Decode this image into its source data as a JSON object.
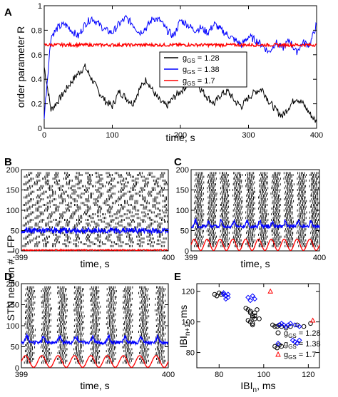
{
  "chart_data": [
    {
      "panel": "A",
      "type": "line",
      "xlabel": "time, s",
      "ylabel": "order parameter R",
      "xlim": [
        0,
        400
      ],
      "ylim": [
        0,
        1
      ],
      "xticks": [
        "0",
        "100",
        "200",
        "300",
        "400"
      ],
      "yticks": [
        "0",
        "0.2",
        "0.4",
        "0.6",
        "0.8",
        "1"
      ],
      "legend_position": "center-right",
      "series": [
        {
          "name": "g_GS = 1.28",
          "sub": "GS",
          "value_text": " = 1.28",
          "color": "#000000",
          "x": [
            0,
            10,
            20,
            30,
            40,
            50,
            60,
            70,
            80,
            90,
            100,
            110,
            120,
            130,
            140,
            150,
            160,
            170,
            180,
            190,
            200,
            210,
            220,
            230,
            240,
            250,
            260,
            270,
            280,
            290,
            300,
            310,
            320,
            330,
            340,
            350,
            360,
            370,
            380,
            390,
            400
          ],
          "y": [
            0.5,
            0.15,
            0.22,
            0.3,
            0.38,
            0.45,
            0.5,
            0.4,
            0.3,
            0.22,
            0.18,
            0.3,
            0.25,
            0.2,
            0.32,
            0.4,
            0.3,
            0.22,
            0.18,
            0.25,
            0.3,
            0.35,
            0.4,
            0.32,
            0.25,
            0.2,
            0.28,
            0.3,
            0.22,
            0.18,
            0.25,
            0.3,
            0.32,
            0.22,
            0.15,
            0.1,
            0.18,
            0.25,
            0.2,
            0.12,
            0.05
          ]
        },
        {
          "name": "g_GS = 1.38",
          "sub": "GS",
          "value_text": " = 1.38",
          "color": "#0000ff",
          "x": [
            0,
            10,
            20,
            30,
            40,
            50,
            60,
            70,
            80,
            90,
            100,
            110,
            120,
            130,
            140,
            150,
            160,
            170,
            180,
            190,
            200,
            210,
            220,
            230,
            240,
            250,
            260,
            270,
            280,
            290,
            300,
            310,
            320,
            330,
            340,
            350,
            360,
            370,
            380,
            390,
            400
          ],
          "y": [
            0.1,
            0.75,
            0.82,
            0.85,
            0.8,
            0.75,
            0.85,
            0.9,
            0.85,
            0.8,
            0.78,
            0.85,
            0.9,
            0.85,
            0.78,
            0.82,
            0.9,
            0.88,
            0.8,
            0.75,
            0.88,
            0.85,
            0.8,
            0.82,
            0.78,
            0.85,
            0.8,
            0.76,
            0.72,
            0.68,
            0.75,
            0.72,
            0.68,
            0.62,
            0.7,
            0.65,
            0.72,
            0.62,
            0.7,
            0.68,
            0.85
          ]
        },
        {
          "name": "g_GS = 1.7",
          "sub": "GS",
          "value_text": " = 1.7",
          "color": "#ff0000",
          "x": [
            0,
            400
          ],
          "y": [
            0.68,
            0.68
          ]
        }
      ]
    },
    {
      "panel": "B",
      "type": "scatter",
      "xlabel": "time, s",
      "ylabel": "STN neuron #, LFP",
      "xlim": [
        399,
        400
      ],
      "ylim": [
        0,
        200
      ],
      "xticks": [
        "399",
        "400"
      ],
      "yticks": [
        "0",
        "50",
        "100",
        "150",
        "200"
      ],
      "series": [
        {
          "name": "raster",
          "color": "#000000"
        },
        {
          "name": "LFP blue",
          "color": "#0000ff",
          "y": 50
        },
        {
          "name": "LFP red",
          "color": "#ff0000",
          "y": 2
        }
      ]
    },
    {
      "panel": "C",
      "type": "scatter",
      "xlabel": "time, s",
      "xlim": [
        399,
        400
      ],
      "ylim": [
        0,
        200
      ],
      "xticks": [
        "399",
        "400"
      ],
      "yticks": [
        "0",
        "50",
        "100",
        "150",
        "200"
      ],
      "cycles": 10,
      "series": [
        {
          "name": "raster",
          "color": "#000000"
        },
        {
          "name": "LFP blue",
          "color": "#0000ff",
          "y": 60
        },
        {
          "name": "LFP red",
          "color": "#ff0000",
          "y": 15
        }
      ]
    },
    {
      "panel": "D",
      "type": "scatter",
      "xlabel": "time, s",
      "ylabel": "STN neuron #, LFP",
      "xlim": [
        399,
        400
      ],
      "ylim": [
        0,
        200
      ],
      "xticks": [
        "399",
        "400"
      ],
      "yticks": [
        "0",
        "50",
        "100",
        "150",
        "200"
      ],
      "cycles": 9,
      "series": [
        {
          "name": "raster",
          "color": "#000000"
        },
        {
          "name": "LFP blue",
          "color": "#0000ff",
          "y": 60
        },
        {
          "name": "LFP red",
          "color": "#ff0000",
          "y": 15
        }
      ]
    },
    {
      "panel": "E",
      "type": "scatter",
      "xlabel_main": "IBI",
      "xlabel_sub": "n",
      "xlabel_unit": ", ms",
      "ylabel_main": "IBI",
      "ylabel_sub": "n+1",
      "ylabel_unit": ", ms",
      "xlim": [
        70,
        125
      ],
      "ylim": [
        70,
        125
      ],
      "xticks": [
        "80",
        "100",
        "120"
      ],
      "yticks": [
        "80",
        "100",
        "120"
      ],
      "legend_position": "lower-right",
      "series": [
        {
          "name": "g_GS = 1.28",
          "sub": "GS",
          "value_text": " = 1.28",
          "color": "#000000",
          "marker": "circle",
          "x": [
            78,
            79,
            80,
            81,
            92,
            93,
            94,
            95,
            96,
            93,
            94,
            95,
            96,
            94,
            95,
            95,
            96,
            97,
            98,
            104,
            105,
            106,
            107,
            108,
            110,
            112,
            115,
            118,
            105,
            106,
            107,
            108,
            121
          ],
          "y": [
            118,
            117,
            119,
            118,
            109,
            108,
            106,
            104,
            102,
            101,
            100,
            99,
            104,
            107,
            103,
            98,
            106,
            108,
            102,
            98,
            97,
            97,
            98,
            97,
            96,
            97,
            98,
            97,
            84,
            83,
            85,
            84,
            99
          ]
        },
        {
          "name": "g_GS = 1.38",
          "sub": "GS",
          "value_text": " = 1.38",
          "color": "#0000ff",
          "marker": "diamond",
          "x": [
            82,
            83,
            84,
            82,
            83,
            84,
            93,
            94,
            95,
            96,
            107,
            108,
            109,
            110,
            111,
            112,
            114,
            116,
            113,
            114,
            115,
            116
          ],
          "y": [
            118,
            117,
            116,
            119,
            115,
            118,
            116,
            114,
            117,
            115,
            98,
            99,
            98,
            97,
            98,
            99,
            98,
            97,
            88,
            87,
            86,
            88
          ]
        },
        {
          "name": "g_GS = 1.7",
          "sub": "GS",
          "value_text": " = 1.7",
          "color": "#ff0000",
          "marker": "triangle",
          "x": [
            103,
            122
          ],
          "y": [
            120,
            101
          ]
        }
      ]
    }
  ],
  "labels": {
    "A": "A",
    "B": "B",
    "C": "C",
    "D": "D",
    "E": "E"
  }
}
